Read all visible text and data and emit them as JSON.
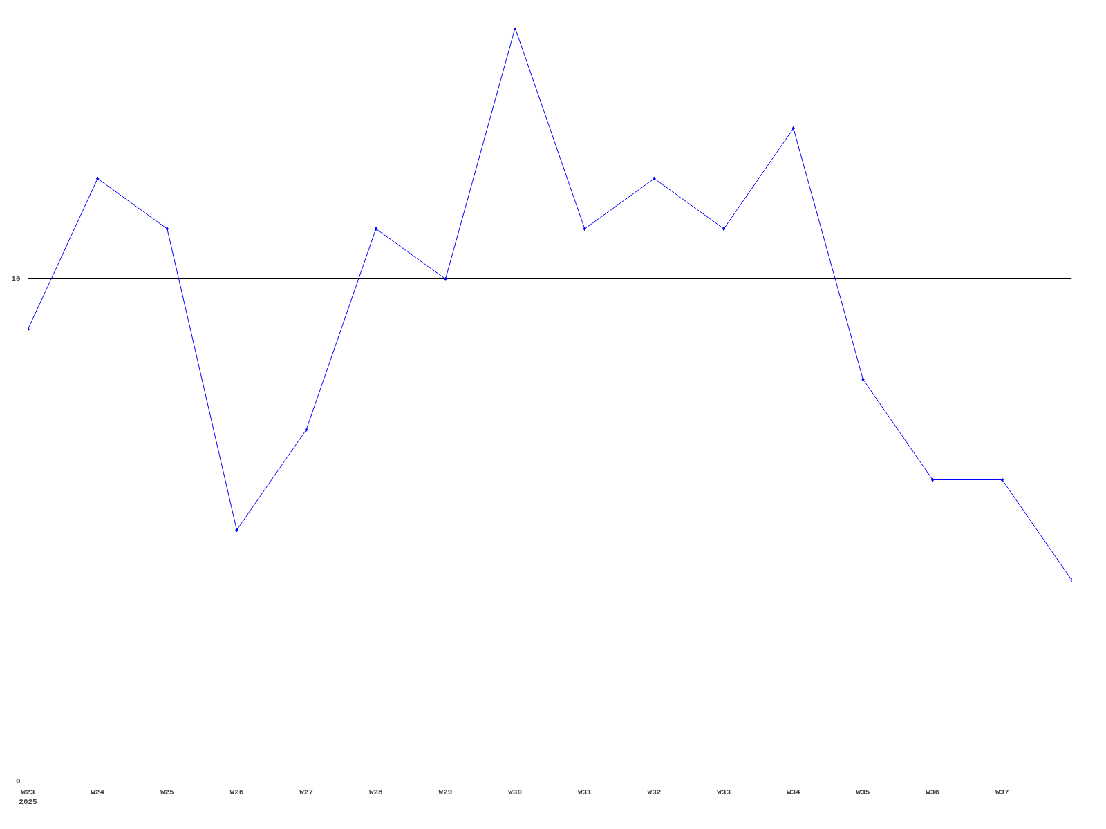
{
  "chart_data": {
    "type": "line",
    "categories": [
      "W23\n2025",
      "W24",
      "W25",
      "W26",
      "W27",
      "W28",
      "W29",
      "W30",
      "W31",
      "W32",
      "W33",
      "W34",
      "W35",
      "W36",
      "W37",
      null
    ],
    "series": [
      {
        "color": "#0000ff",
        "values": [
          9,
          12,
          11,
          5,
          7,
          11,
          10,
          15,
          11,
          12,
          11,
          13,
          8,
          6,
          6,
          4
        ]
      }
    ],
    "ylim": [
      0,
      15
    ],
    "yticks": [
      0,
      10
    ],
    "grid": "y",
    "marker": "diamond",
    "line_style": "solid"
  }
}
